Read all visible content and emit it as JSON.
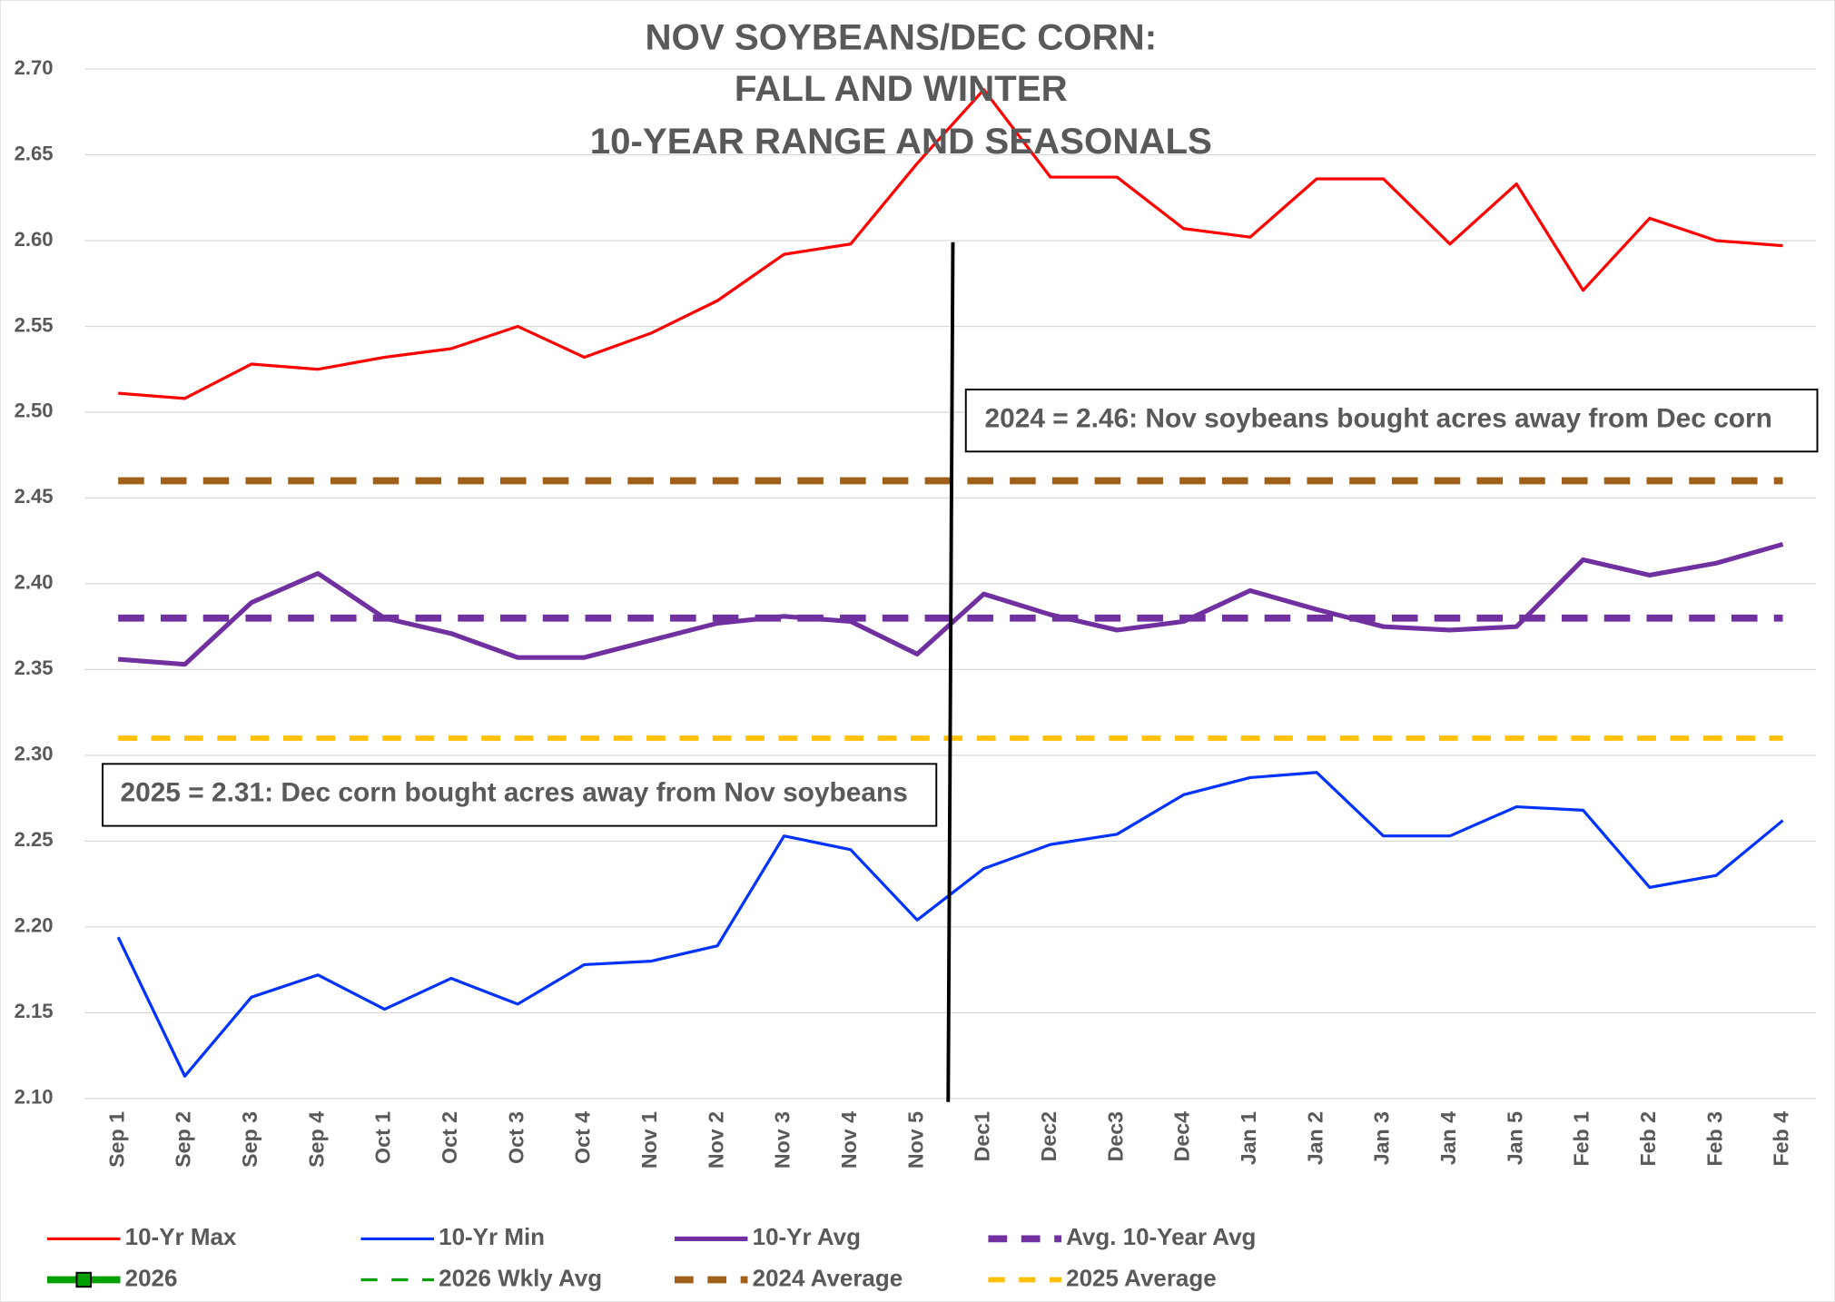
{
  "chart_data": {
    "type": "line",
    "title": [
      "NOV SOYBEANS/DEC CORN:",
      "FALL AND WINTER",
      "10-YEAR RANGE AND SEASONALS"
    ],
    "categories": [
      "Sep 1",
      "Sep 2",
      "Sep 3",
      "Sep 4",
      "Oct 1",
      "Oct 2",
      "Oct 3",
      "Oct 4",
      "Nov 1",
      "Nov 2",
      "Nov 3",
      "Nov 4",
      "Nov 5",
      "Dec1",
      "Dec2",
      "Dec3",
      "Dec4",
      "Jan 1",
      "Jan 2",
      "Jan 3",
      "Jan 4",
      "Jan 5",
      "Feb 1",
      "Feb 2",
      "Feb 3",
      "Feb 4"
    ],
    "series": [
      {
        "name": "10-Yr Max",
        "color": "#ff0000",
        "style": "solid",
        "width": 2.5,
        "values": [
          2.511,
          2.508,
          2.528,
          2.525,
          2.532,
          2.537,
          2.55,
          2.532,
          2.546,
          2.565,
          2.592,
          2.598,
          2.645,
          2.688,
          2.637,
          2.637,
          2.607,
          2.602,
          2.636,
          2.636,
          2.598,
          2.633,
          2.571,
          2.613,
          2.6,
          2.597
        ]
      },
      {
        "name": "10-Yr Min",
        "color": "#0033ff",
        "style": "solid",
        "width": 2.5,
        "values": [
          2.194,
          2.113,
          2.159,
          2.172,
          2.152,
          2.17,
          2.155,
          2.178,
          2.18,
          2.189,
          2.253,
          2.245,
          2.204,
          2.234,
          2.248,
          2.254,
          2.277,
          2.287,
          2.29,
          2.253,
          2.253,
          2.27,
          2.268,
          2.223,
          2.23,
          2.262
        ]
      },
      {
        "name": "10-Yr Avg",
        "color": "#7030a0",
        "style": "solid",
        "width": 4,
        "values": [
          2.356,
          2.353,
          2.389,
          2.406,
          2.38,
          2.371,
          2.357,
          2.357,
          2.367,
          2.377,
          2.381,
          2.378,
          2.359,
          2.394,
          2.382,
          2.373,
          2.378,
          2.396,
          2.385,
          2.375,
          2.373,
          2.375,
          2.414,
          2.405,
          2.412,
          2.423
        ]
      },
      {
        "name": "Avg. 10-Year Avg",
        "color": "#7030a0",
        "style": "dashed",
        "width": 6,
        "values": [
          2.38,
          2.38,
          2.38,
          2.38,
          2.38,
          2.38,
          2.38,
          2.38,
          2.38,
          2.38,
          2.38,
          2.38,
          2.38,
          2.38,
          2.38,
          2.38,
          2.38,
          2.38,
          2.38,
          2.38,
          2.38,
          2.38,
          2.38,
          2.38,
          2.38,
          2.38
        ]
      },
      {
        "name": "2026",
        "color": "#00a000",
        "style": "marker",
        "width": 6,
        "values": [
          null,
          null,
          null,
          null,
          null,
          null,
          null,
          null,
          null,
          null,
          null,
          null,
          null,
          null,
          null,
          null,
          null,
          null,
          null,
          null,
          null,
          null,
          null,
          null,
          null,
          null
        ]
      },
      {
        "name": "2026 Wkly Avg",
        "color": "#00a000",
        "style": "dashed",
        "width": 2.5,
        "values": [
          null,
          null,
          null,
          null,
          null,
          null,
          null,
          null,
          null,
          null,
          null,
          null,
          null,
          null,
          null,
          null,
          null,
          null,
          null,
          null,
          null,
          null,
          null,
          null,
          null,
          null
        ]
      },
      {
        "name": "2024 Average",
        "color": "#a0601a",
        "style": "dashed",
        "width": 6,
        "values": [
          2.46,
          2.46,
          2.46,
          2.46,
          2.46,
          2.46,
          2.46,
          2.46,
          2.46,
          2.46,
          2.46,
          2.46,
          2.46,
          2.46,
          2.46,
          2.46,
          2.46,
          2.46,
          2.46,
          2.46,
          2.46,
          2.46,
          2.46,
          2.46,
          2.46,
          2.46
        ]
      },
      {
        "name": "2025 Average",
        "color": "#ffc000",
        "style": "dashed",
        "width": 4.5,
        "values": [
          2.31,
          2.31,
          2.31,
          2.31,
          2.31,
          2.31,
          2.31,
          2.31,
          2.31,
          2.31,
          2.31,
          2.31,
          2.31,
          2.31,
          2.31,
          2.31,
          2.31,
          2.31,
          2.31,
          2.31,
          2.31,
          2.31,
          2.31,
          2.31,
          2.31,
          2.31
        ]
      }
    ],
    "annotations": [
      {
        "text": "2024 = 2.46: Nov soybeans bought acres away from Dec corn",
        "color": "#a0601a"
      },
      {
        "text": "2025 = 2.31: Dec corn bought acres away from Nov soybeans",
        "color": "#ffc000"
      }
    ],
    "ylim": [
      2.1,
      2.7
    ],
    "yticks": [
      {
        "value": 2.1,
        "label": "2.10"
      },
      2.15,
      {
        "value": 2.2,
        "label": "2.20"
      },
      2.25,
      {
        "value": 2.3,
        "label": "2.30"
      },
      2.35,
      {
        "value": 2.4,
        "label": "2.40"
      },
      2.45,
      {
        "value": 2.5,
        "label": "2.50"
      },
      2.55,
      {
        "value": 2.6,
        "label": "2.60"
      },
      2.65,
      {
        "value": 2.7,
        "label": "2.70"
      }
    ],
    "grid": true,
    "legend": "bottom"
  }
}
